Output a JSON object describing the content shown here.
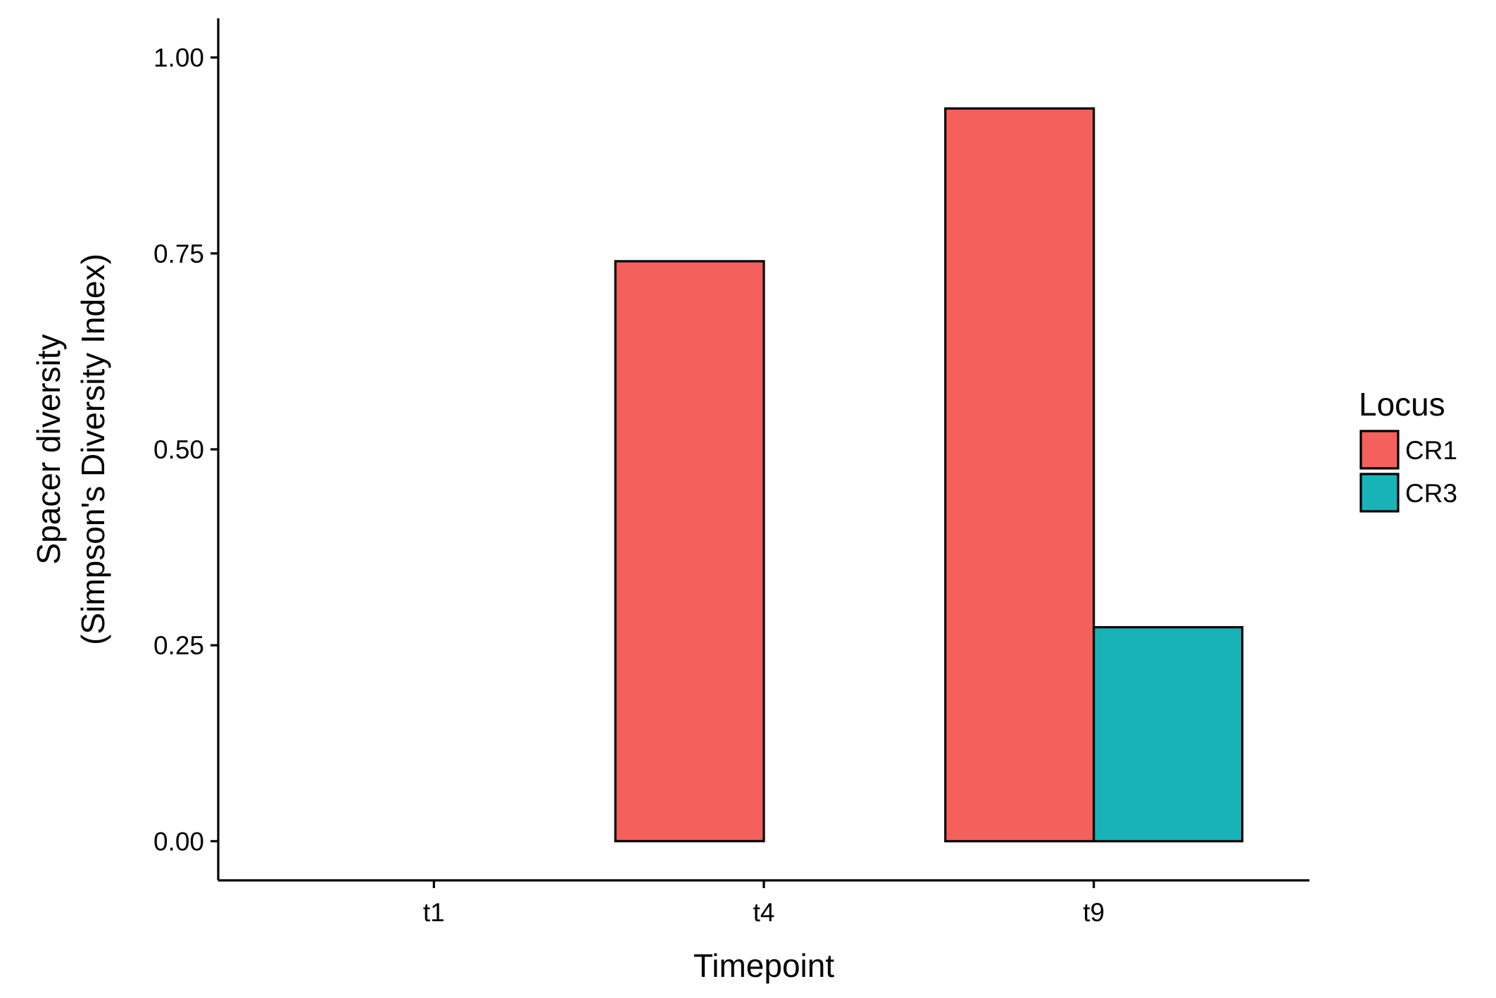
{
  "chart_data": {
    "type": "bar",
    "title": "",
    "xlabel": "Timepoint",
    "ylabel_lines": [
      "Spacer diversity",
      "(Simpson's Diversity Index)"
    ],
    "categories": [
      "t1",
      "t4",
      "t9"
    ],
    "series": [
      {
        "name": "CR1",
        "color": "#F4605C",
        "values": [
          0,
          0.74,
          0.935
        ]
      },
      {
        "name": "CR3",
        "color": "#18B3B6",
        "values": [
          0,
          0,
          0.273
        ]
      }
    ],
    "ylim": [
      -0.05,
      1.05
    ],
    "yticks": [
      0,
      0.25,
      0.5,
      0.75,
      1.0
    ],
    "ytick_labels": [
      "0.00",
      "0.25",
      "0.50",
      "0.75",
      "1.00"
    ],
    "grid": false,
    "legend": {
      "title": "Locus",
      "placement": "right"
    }
  }
}
